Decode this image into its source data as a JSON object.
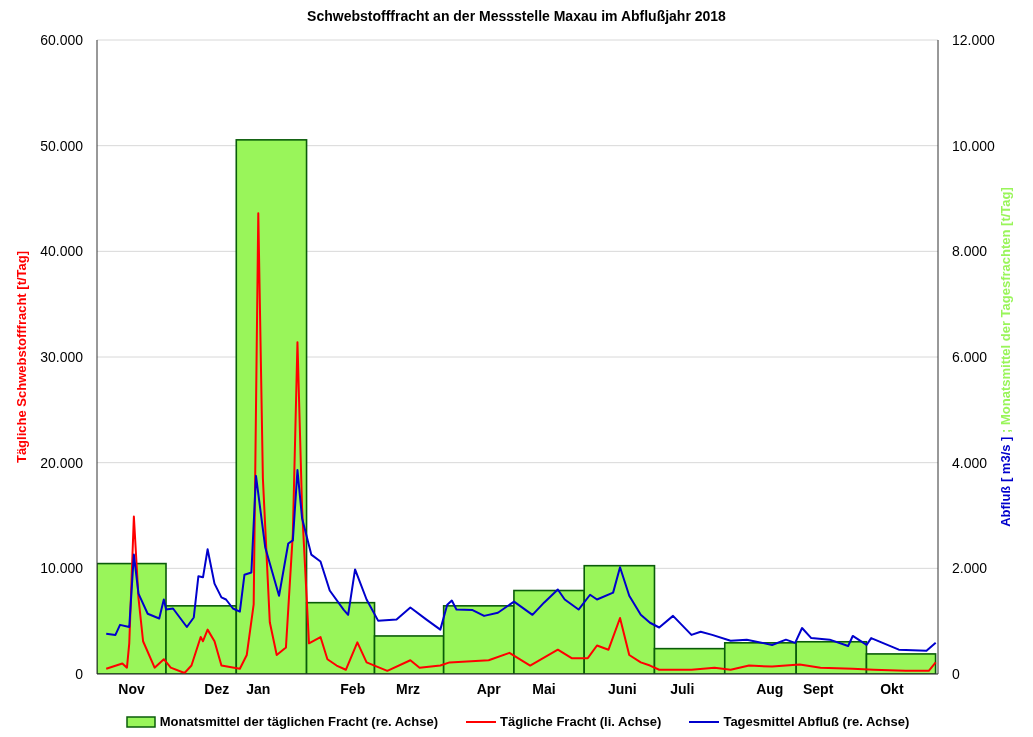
{
  "chart_data": {
    "type": "line",
    "title": "Schwebstofffracht an der Messstelle Maxau im Abflußjahr 2018",
    "ylabel": "Tägliche Schwebstofffracht [t/Tag]",
    "y2label": "Abfluß [ m3/s ] ; Monatsmittel der Tagesfrachten [t/Tag]",
    "xlim": [
      "2017-11-01",
      "2018-11-01"
    ],
    "xticks": [
      {
        "value": "2017-11-16",
        "label": "Nov"
      },
      {
        "value": "2017-12-23",
        "label": "Dez"
      },
      {
        "value": "2018-01-10",
        "label": "Jan"
      },
      {
        "value": "2018-02-20",
        "label": "Feb"
      },
      {
        "value": "2018-03-16",
        "label": "Mrz"
      },
      {
        "value": "2018-04-20",
        "label": "Apr"
      },
      {
        "value": "2018-05-14",
        "label": "Mai"
      },
      {
        "value": "2018-06-17",
        "label": "Juni"
      },
      {
        "value": "2018-07-13",
        "label": "Juli"
      },
      {
        "value": "2018-08-20",
        "label": "Aug"
      },
      {
        "value": "2018-09-10",
        "label": "Sept"
      },
      {
        "value": "2018-10-12",
        "label": "Okt"
      }
    ],
    "ylim": [
      0,
      60000
    ],
    "yticks": [
      {
        "value": 0,
        "label": "0"
      },
      {
        "value": 10000,
        "label": "10.000"
      },
      {
        "value": 20000,
        "label": "20.000"
      },
      {
        "value": 30000,
        "label": "30.000"
      },
      {
        "value": 40000,
        "label": "40.000"
      },
      {
        "value": 50000,
        "label": "50.000"
      },
      {
        "value": 60000,
        "label": "60.000"
      }
    ],
    "y2lim": [
      0,
      12000
    ],
    "y2ticks": [
      {
        "value": 0,
        "label": "0"
      },
      {
        "value": 2000,
        "label": "2.000"
      },
      {
        "value": 4000,
        "label": "4.000"
      },
      {
        "value": 6000,
        "label": "6.000"
      },
      {
        "value": 8000,
        "label": "8.000"
      },
      {
        "value": 10000,
        "label": "10.000"
      },
      {
        "value": 12000,
        "label": "12.000"
      }
    ],
    "grid": "y",
    "legend": "bottom",
    "marker": "none",
    "series": [
      {
        "name": "Monatsmittel der täglichen Fracht (re. Achse)",
        "type": "bar",
        "axis": "y2",
        "color": "#99f55a",
        "x": [
          "2017-11-16",
          "2017-12-16",
          "2018-01-16",
          "2018-02-15",
          "2018-03-16",
          "2018-04-16",
          "2018-05-16",
          "2018-06-16",
          "2018-07-16",
          "2018-08-16",
          "2018-09-16",
          "2018-10-16"
        ],
        "values": [
          2090,
          1290,
          10110,
          1350,
          720,
          1290,
          1580,
          2050,
          480,
          590,
          610,
          380
        ]
      },
      {
        "name": "Tägliche Fracht (li. Achse)",
        "axis": "y",
        "color": "#ff0000",
        "x": [
          "2017-11-05",
          "2017-11-12",
          "2017-11-14",
          "2017-11-15",
          "2017-11-17",
          "2017-11-19",
          "2017-11-21",
          "2017-11-26",
          "2017-11-30",
          "2017-12-03",
          "2017-12-09",
          "2017-12-12",
          "2017-12-16",
          "2017-12-17",
          "2017-12-19",
          "2017-12-22",
          "2017-12-25",
          "2018-01-02",
          "2018-01-05",
          "2018-01-08",
          "2018-01-10",
          "2018-01-12",
          "2018-01-15",
          "2018-01-18",
          "2018-01-22",
          "2018-01-25",
          "2018-01-27",
          "2018-01-29",
          "2018-02-01",
          "2018-02-06",
          "2018-02-09",
          "2018-02-13",
          "2018-02-17",
          "2018-02-22",
          "2018-02-26",
          "2018-03-07",
          "2018-03-17",
          "2018-03-21",
          "2018-03-30",
          "2018-04-03",
          "2018-04-20",
          "2018-04-29",
          "2018-05-08",
          "2018-05-20",
          "2018-05-26",
          "2018-06-02",
          "2018-06-06",
          "2018-06-11",
          "2018-06-16",
          "2018-06-20",
          "2018-06-25",
          "2018-06-29",
          "2018-07-03",
          "2018-07-17",
          "2018-07-27",
          "2018-08-03",
          "2018-08-11",
          "2018-08-21",
          "2018-09-02",
          "2018-09-11",
          "2018-09-25",
          "2018-10-04",
          "2018-10-18",
          "2018-10-28",
          "2018-10-31"
        ],
        "values": [
          500,
          1000,
          600,
          2900,
          14900,
          7200,
          3100,
          600,
          1400,
          600,
          100,
          800,
          3500,
          3100,
          4200,
          3100,
          800,
          500,
          1800,
          6600,
          43600,
          18500,
          4900,
          1800,
          2500,
          13300,
          31400,
          15700,
          2900,
          3500,
          1400,
          800,
          400,
          3000,
          1100,
          300,
          1300,
          600,
          800,
          1100,
          1300,
          2000,
          800,
          2300,
          1500,
          1500,
          2700,
          2300,
          5300,
          1800,
          1100,
          800,
          400,
          400,
          600,
          400,
          800,
          700,
          900,
          600,
          500,
          400,
          300,
          300,
          1100
        ]
      },
      {
        "name": "Tagesmittel Abfluß (re. Achse)",
        "axis": "y2",
        "color": "#0000cc",
        "x": [
          "2017-11-05",
          "2017-11-09",
          "2017-11-11",
          "2017-11-15",
          "2017-11-17",
          "2017-11-19",
          "2017-11-23",
          "2017-11-28",
          "2017-11-30",
          "2017-12-01",
          "2017-12-04",
          "2017-12-10",
          "2017-12-13",
          "2017-12-15",
          "2017-12-17",
          "2017-12-19",
          "2017-12-22",
          "2017-12-25",
          "2017-12-27",
          "2017-12-30",
          "2018-01-02",
          "2018-01-04",
          "2018-01-07",
          "2018-01-09",
          "2018-01-13",
          "2018-01-19",
          "2018-01-23",
          "2018-01-25",
          "2018-01-27",
          "2018-01-29",
          "2018-02-02",
          "2018-02-06",
          "2018-02-10",
          "2018-02-16",
          "2018-02-18",
          "2018-02-21",
          "2018-02-26",
          "2018-03-03",
          "2018-03-11",
          "2018-03-17",
          "2018-03-24",
          "2018-03-30",
          "2018-04-02",
          "2018-04-04",
          "2018-04-06",
          "2018-04-13",
          "2018-04-18",
          "2018-04-24",
          "2018-05-01",
          "2018-05-09",
          "2018-05-14",
          "2018-05-20",
          "2018-05-23",
          "2018-05-29",
          "2018-06-03",
          "2018-06-06",
          "2018-06-13",
          "2018-06-16",
          "2018-06-20",
          "2018-06-25",
          "2018-06-29",
          "2018-07-03",
          "2018-07-09",
          "2018-07-17",
          "2018-07-21",
          "2018-07-26",
          "2018-08-03",
          "2018-08-10",
          "2018-08-21",
          "2018-08-27",
          "2018-08-31",
          "2018-09-03",
          "2018-09-07",
          "2018-09-15",
          "2018-09-23",
          "2018-09-25",
          "2018-10-01",
          "2018-10-03",
          "2018-10-15",
          "2018-10-27",
          "2018-10-31"
        ],
        "values": [
          760,
          740,
          930,
          890,
          2260,
          1520,
          1140,
          1050,
          1410,
          1220,
          1240,
          890,
          1070,
          1850,
          1830,
          2360,
          1710,
          1450,
          1410,
          1240,
          1180,
          1880,
          1920,
          3750,
          2400,
          1480,
          2470,
          2530,
          3860,
          2950,
          2260,
          2130,
          1580,
          1220,
          1120,
          1980,
          1410,
          1010,
          1030,
          1260,
          1030,
          840,
          1310,
          1390,
          1220,
          1210,
          1100,
          1160,
          1370,
          1120,
          1350,
          1600,
          1410,
          1220,
          1500,
          1410,
          1540,
          2020,
          1480,
          1120,
          970,
          880,
          1100,
          740,
          800,
          740,
          630,
          650,
          550,
          650,
          590,
          870,
          680,
          650,
          530,
          720,
          550,
          680,
          460,
          440,
          590
        ]
      }
    ]
  }
}
